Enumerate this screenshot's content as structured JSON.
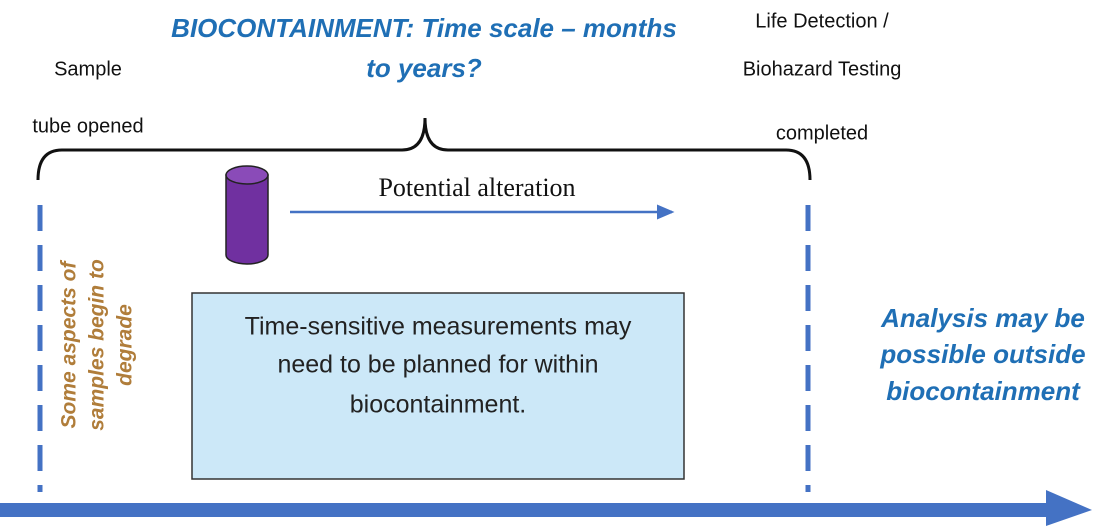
{
  "title": {
    "lines": [
      "BIOCONTAINMENT: Time scale – months",
      "to years?"
    ]
  },
  "start_label": {
    "lines": [
      "Sample",
      "tube opened"
    ]
  },
  "end_label": {
    "lines": [
      "Life Detection /",
      "Biohazard Testing",
      "completed"
    ]
  },
  "alteration_label": "Potential alteration",
  "box": {
    "lines": [
      "Time-sensitive measurements may",
      "need to be planned for within",
      "biocontainment."
    ]
  },
  "degrade_note": {
    "lines": [
      "Some aspects of",
      "samples begin to",
      "degrade"
    ]
  },
  "outside_note": {
    "lines": [
      "Analysis may be",
      "possible outside",
      "biocontainment"
    ]
  }
}
